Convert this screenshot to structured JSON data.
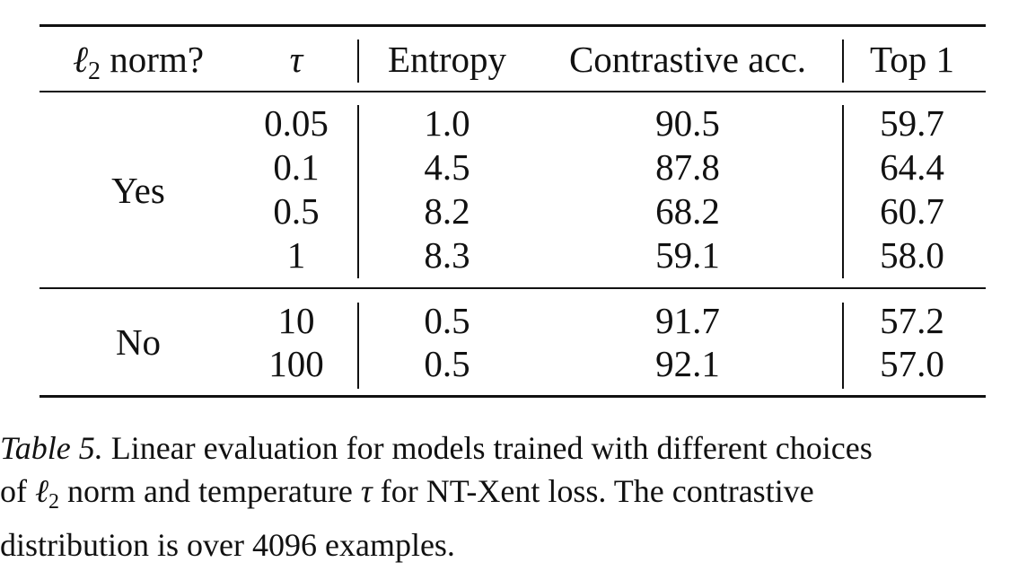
{
  "table": {
    "headers": {
      "l2_norm": {
        "symbol": "ℓ",
        "subscript": "2",
        "text": "norm?"
      },
      "tau": "τ",
      "entropy": "Entropy",
      "contrastive_acc": "Contrastive acc.",
      "top1": "Top 1"
    },
    "groups": [
      {
        "label": "Yes",
        "rows": [
          {
            "tau": "0.05",
            "entropy": "1.0",
            "contrastive_acc": "90.5",
            "top1": "59.7"
          },
          {
            "tau": "0.1",
            "entropy": "4.5",
            "contrastive_acc": "87.8",
            "top1": "64.4"
          },
          {
            "tau": "0.5",
            "entropy": "8.2",
            "contrastive_acc": "68.2",
            "top1": "60.7"
          },
          {
            "tau": "1",
            "entropy": "8.3",
            "contrastive_acc": "59.1",
            "top1": "58.0"
          }
        ]
      },
      {
        "label": "No",
        "rows": [
          {
            "tau": "10",
            "entropy": "0.5",
            "contrastive_acc": "91.7",
            "top1": "57.2"
          },
          {
            "tau": "100",
            "entropy": "0.5",
            "contrastive_acc": "92.1",
            "top1": "57.0"
          }
        ]
      }
    ]
  },
  "caption": {
    "label": "Table 5.",
    "line1": "Linear evaluation for models trained with different choices",
    "line2_a": "of",
    "line2_symbol": "ℓ",
    "line2_subscript": "2",
    "line2_b": "norm and temperature",
    "line2_tau": "τ",
    "line2_c": "for NT-Xent loss. The contrastive",
    "line3": "distribution is over 4096 examples."
  }
}
